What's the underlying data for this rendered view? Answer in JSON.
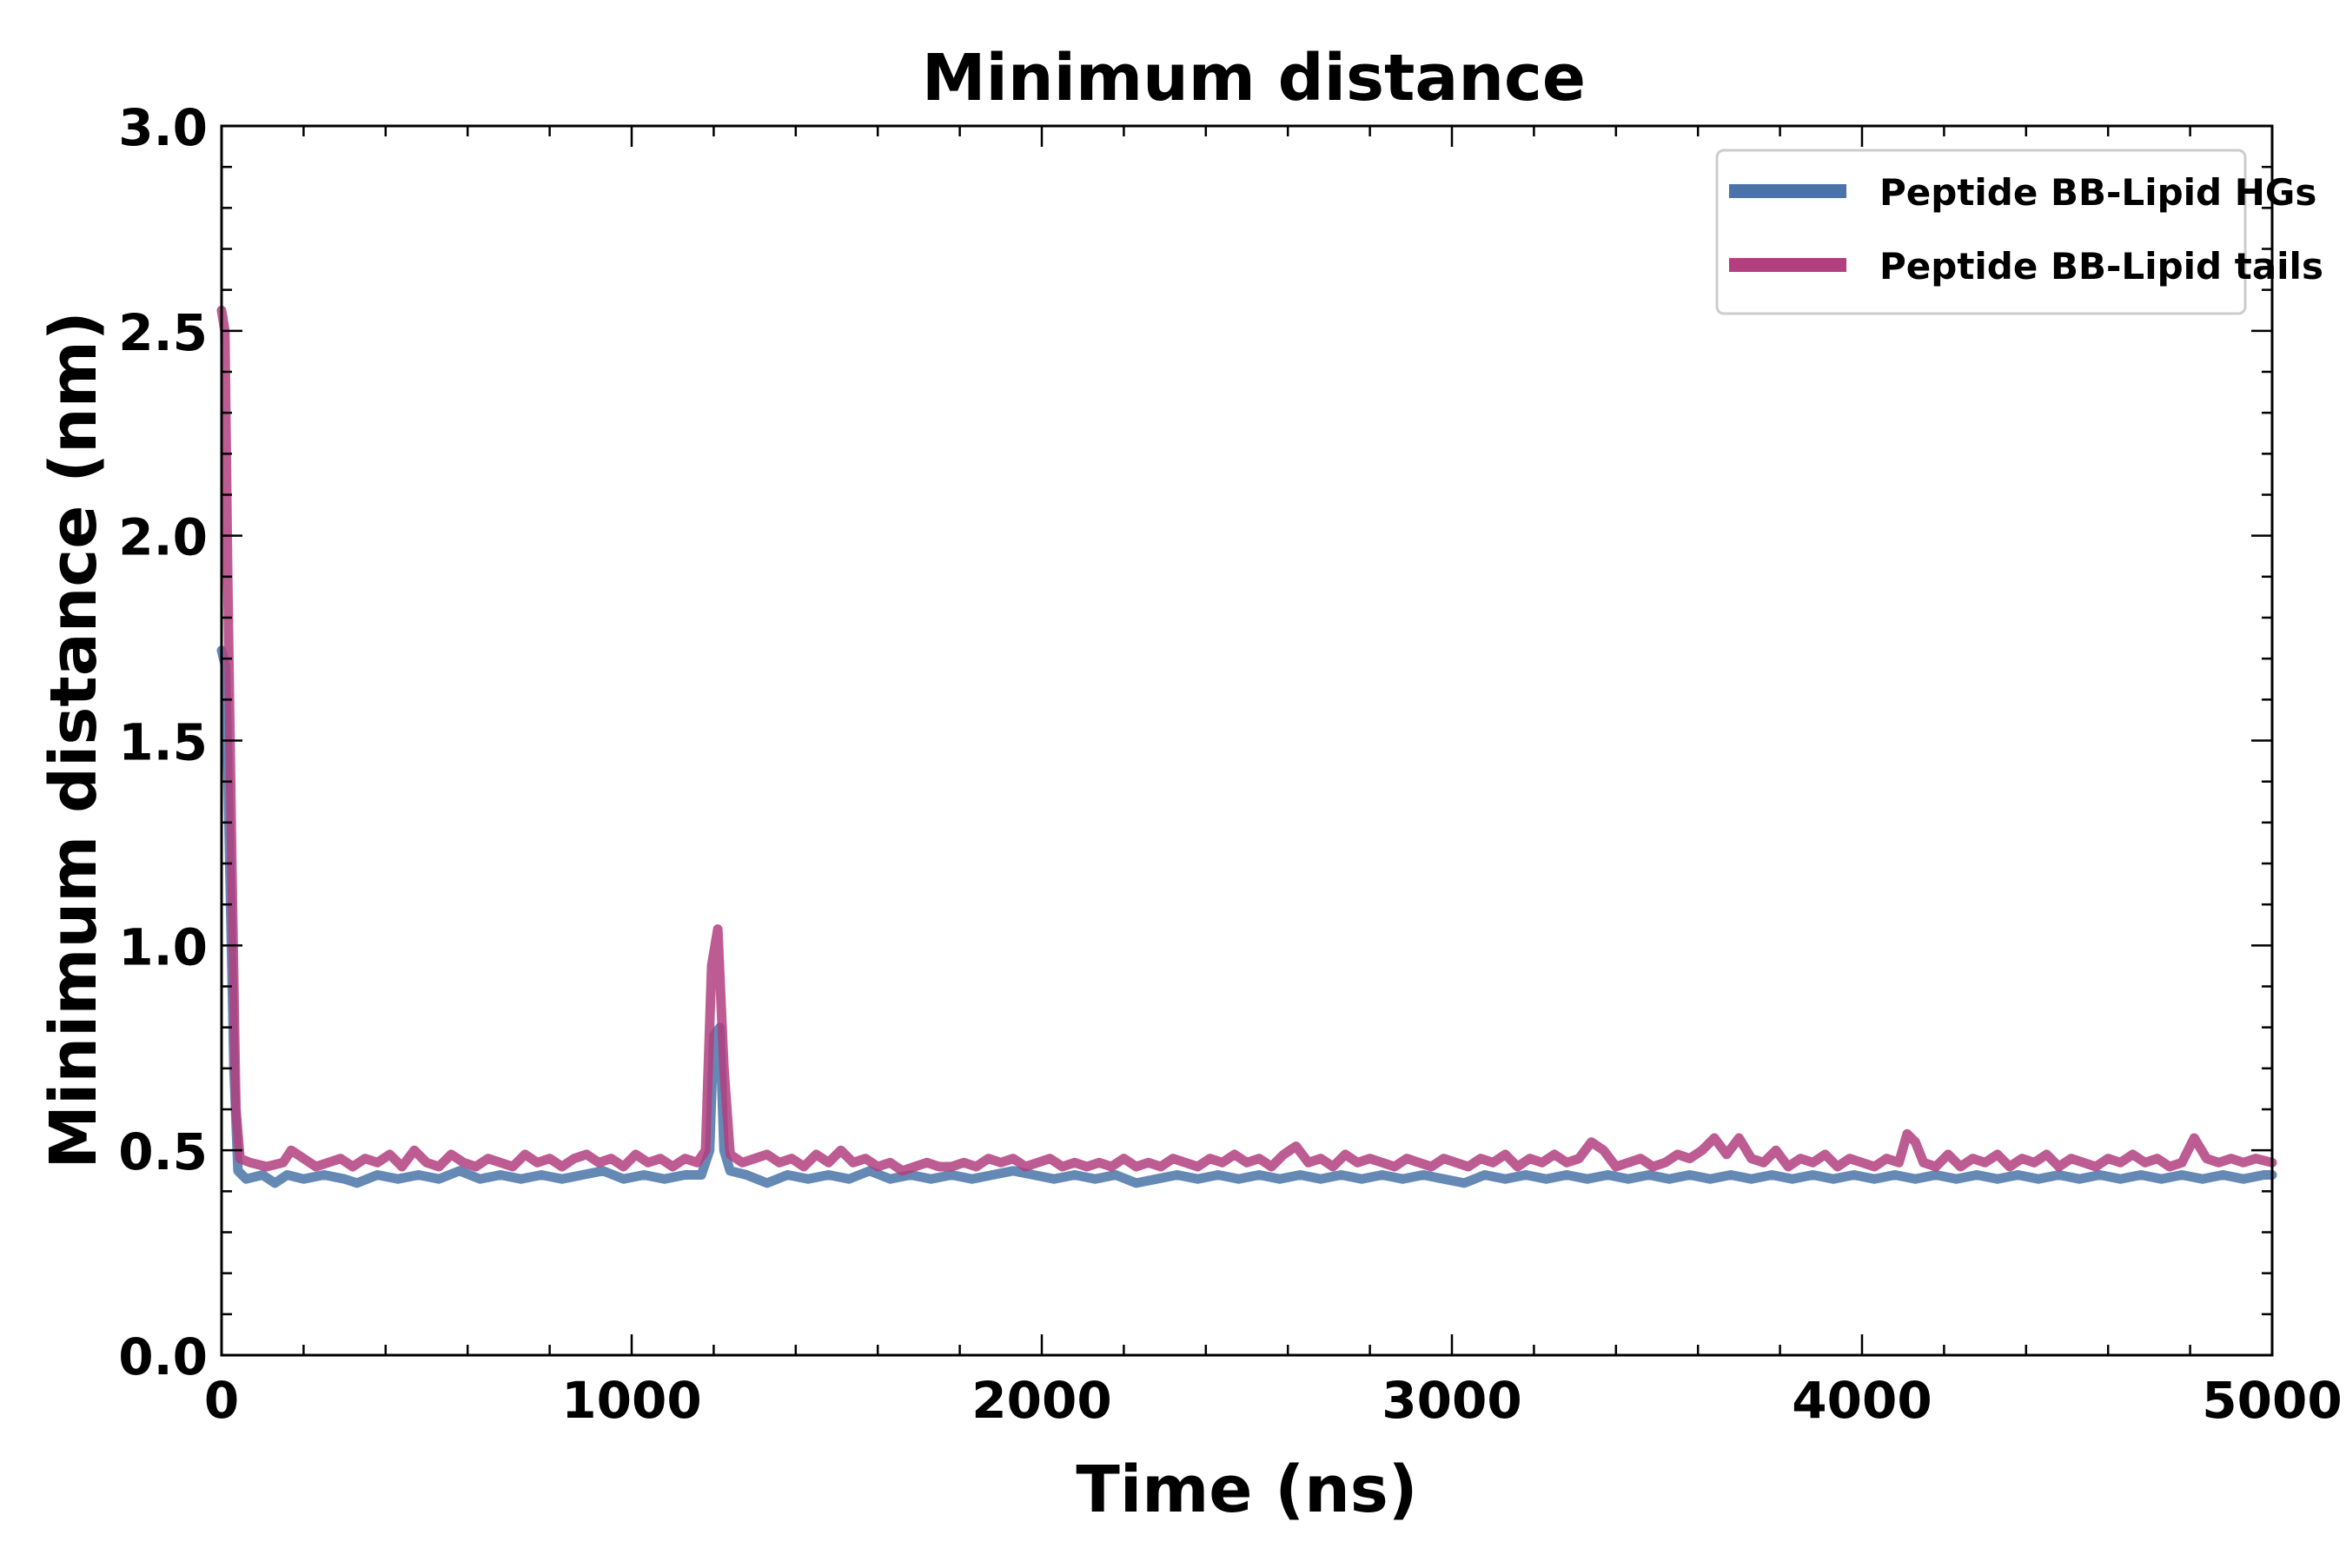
{
  "chart_data": {
    "type": "line",
    "title": "Minimum distance",
    "xlabel": "Time (ns)",
    "ylabel": "Minimum distance (nm)",
    "xlim": [
      0,
      5000
    ],
    "ylim": [
      0.0,
      3.0
    ],
    "xticks": [
      0,
      1000,
      2000,
      3000,
      4000,
      5000
    ],
    "xtick_labels": [
      "0",
      "1000",
      "2000",
      "3000",
      "4000",
      "5000"
    ],
    "yticks": [
      0.0,
      0.5,
      1.0,
      1.5,
      2.0,
      2.5,
      3.0
    ],
    "ytick_labels": [
      "0.0",
      "0.5",
      "1.0",
      "1.5",
      "2.0",
      "2.5",
      "3.0"
    ],
    "grid": false,
    "legend_position": "top-right",
    "series": [
      {
        "name": "Peptide BB-Lipid HGs",
        "color": "#4a74a8",
        "points": [
          [
            0,
            1.72
          ],
          [
            10,
            1.68
          ],
          [
            20,
            1.2
          ],
          [
            30,
            0.7
          ],
          [
            40,
            0.45
          ],
          [
            60,
            0.43
          ],
          [
            100,
            0.44
          ],
          [
            130,
            0.42
          ],
          [
            160,
            0.44
          ],
          [
            200,
            0.43
          ],
          [
            250,
            0.44
          ],
          [
            300,
            0.43
          ],
          [
            330,
            0.42
          ],
          [
            380,
            0.44
          ],
          [
            430,
            0.43
          ],
          [
            480,
            0.44
          ],
          [
            530,
            0.43
          ],
          [
            580,
            0.45
          ],
          [
            630,
            0.43
          ],
          [
            680,
            0.44
          ],
          [
            730,
            0.43
          ],
          [
            780,
            0.44
          ],
          [
            830,
            0.43
          ],
          [
            880,
            0.44
          ],
          [
            930,
            0.45
          ],
          [
            980,
            0.43
          ],
          [
            1030,
            0.44
          ],
          [
            1080,
            0.43
          ],
          [
            1130,
            0.44
          ],
          [
            1170,
            0.44
          ],
          [
            1190,
            0.5
          ],
          [
            1200,
            0.78
          ],
          [
            1215,
            0.8
          ],
          [
            1225,
            0.5
          ],
          [
            1240,
            0.45
          ],
          [
            1280,
            0.44
          ],
          [
            1330,
            0.42
          ],
          [
            1380,
            0.44
          ],
          [
            1430,
            0.43
          ],
          [
            1480,
            0.44
          ],
          [
            1530,
            0.43
          ],
          [
            1580,
            0.45
          ],
          [
            1630,
            0.43
          ],
          [
            1680,
            0.44
          ],
          [
            1730,
            0.43
          ],
          [
            1780,
            0.44
          ],
          [
            1830,
            0.43
          ],
          [
            1880,
            0.44
          ],
          [
            1930,
            0.45
          ],
          [
            1980,
            0.44
          ],
          [
            2030,
            0.43
          ],
          [
            2080,
            0.44
          ],
          [
            2130,
            0.43
          ],
          [
            2180,
            0.44
          ],
          [
            2230,
            0.42
          ],
          [
            2280,
            0.43
          ],
          [
            2330,
            0.44
          ],
          [
            2380,
            0.43
          ],
          [
            2430,
            0.44
          ],
          [
            2480,
            0.43
          ],
          [
            2530,
            0.44
          ],
          [
            2580,
            0.43
          ],
          [
            2630,
            0.44
          ],
          [
            2680,
            0.43
          ],
          [
            2730,
            0.44
          ],
          [
            2780,
            0.43
          ],
          [
            2830,
            0.44
          ],
          [
            2880,
            0.43
          ],
          [
            2930,
            0.44
          ],
          [
            2980,
            0.43
          ],
          [
            3030,
            0.42
          ],
          [
            3080,
            0.44
          ],
          [
            3130,
            0.43
          ],
          [
            3180,
            0.44
          ],
          [
            3230,
            0.43
          ],
          [
            3280,
            0.44
          ],
          [
            3330,
            0.43
          ],
          [
            3380,
            0.44
          ],
          [
            3430,
            0.43
          ],
          [
            3480,
            0.44
          ],
          [
            3530,
            0.43
          ],
          [
            3580,
            0.44
          ],
          [
            3630,
            0.43
          ],
          [
            3680,
            0.44
          ],
          [
            3730,
            0.43
          ],
          [
            3780,
            0.44
          ],
          [
            3830,
            0.43
          ],
          [
            3880,
            0.44
          ],
          [
            3930,
            0.43
          ],
          [
            3980,
            0.44
          ],
          [
            4030,
            0.43
          ],
          [
            4080,
            0.44
          ],
          [
            4130,
            0.43
          ],
          [
            4180,
            0.44
          ],
          [
            4230,
            0.43
          ],
          [
            4280,
            0.44
          ],
          [
            4330,
            0.43
          ],
          [
            4380,
            0.44
          ],
          [
            4430,
            0.43
          ],
          [
            4480,
            0.44
          ],
          [
            4530,
            0.43
          ],
          [
            4580,
            0.44
          ],
          [
            4630,
            0.43
          ],
          [
            4680,
            0.44
          ],
          [
            4730,
            0.43
          ],
          [
            4780,
            0.44
          ],
          [
            4830,
            0.43
          ],
          [
            4880,
            0.44
          ],
          [
            4930,
            0.43
          ],
          [
            4980,
            0.44
          ],
          [
            5000,
            0.44
          ]
        ]
      },
      {
        "name": "Peptide BB-Lipid tails",
        "color": "#b23f7f",
        "points": [
          [
            0,
            2.55
          ],
          [
            8,
            2.5
          ],
          [
            15,
            1.9
          ],
          [
            25,
            1.2
          ],
          [
            35,
            0.6
          ],
          [
            45,
            0.48
          ],
          [
            70,
            0.47
          ],
          [
            110,
            0.46
          ],
          [
            150,
            0.47
          ],
          [
            170,
            0.5
          ],
          [
            200,
            0.48
          ],
          [
            230,
            0.46
          ],
          [
            260,
            0.47
          ],
          [
            290,
            0.48
          ],
          [
            320,
            0.46
          ],
          [
            350,
            0.48
          ],
          [
            380,
            0.47
          ],
          [
            410,
            0.49
          ],
          [
            440,
            0.46
          ],
          [
            470,
            0.5
          ],
          [
            500,
            0.47
          ],
          [
            530,
            0.46
          ],
          [
            560,
            0.49
          ],
          [
            590,
            0.47
          ],
          [
            620,
            0.46
          ],
          [
            650,
            0.48
          ],
          [
            680,
            0.47
          ],
          [
            710,
            0.46
          ],
          [
            740,
            0.49
          ],
          [
            770,
            0.47
          ],
          [
            800,
            0.48
          ],
          [
            830,
            0.46
          ],
          [
            860,
            0.48
          ],
          [
            890,
            0.49
          ],
          [
            920,
            0.47
          ],
          [
            950,
            0.48
          ],
          [
            980,
            0.46
          ],
          [
            1010,
            0.49
          ],
          [
            1040,
            0.47
          ],
          [
            1070,
            0.48
          ],
          [
            1100,
            0.46
          ],
          [
            1130,
            0.48
          ],
          [
            1160,
            0.47
          ],
          [
            1180,
            0.5
          ],
          [
            1195,
            0.95
          ],
          [
            1210,
            1.04
          ],
          [
            1225,
            0.7
          ],
          [
            1240,
            0.49
          ],
          [
            1270,
            0.47
          ],
          [
            1300,
            0.48
          ],
          [
            1330,
            0.49
          ],
          [
            1360,
            0.47
          ],
          [
            1390,
            0.48
          ],
          [
            1420,
            0.46
          ],
          [
            1450,
            0.49
          ],
          [
            1480,
            0.47
          ],
          [
            1510,
            0.5
          ],
          [
            1540,
            0.47
          ],
          [
            1570,
            0.48
          ],
          [
            1600,
            0.46
          ],
          [
            1630,
            0.47
          ],
          [
            1660,
            0.45
          ],
          [
            1690,
            0.46
          ],
          [
            1720,
            0.47
          ],
          [
            1750,
            0.46
          ],
          [
            1780,
            0.46
          ],
          [
            1810,
            0.47
          ],
          [
            1840,
            0.46
          ],
          [
            1870,
            0.48
          ],
          [
            1900,
            0.47
          ],
          [
            1930,
            0.48
          ],
          [
            1960,
            0.46
          ],
          [
            1990,
            0.47
          ],
          [
            2020,
            0.48
          ],
          [
            2050,
            0.46
          ],
          [
            2080,
            0.47
          ],
          [
            2110,
            0.46
          ],
          [
            2140,
            0.47
          ],
          [
            2170,
            0.46
          ],
          [
            2200,
            0.48
          ],
          [
            2230,
            0.46
          ],
          [
            2260,
            0.47
          ],
          [
            2290,
            0.46
          ],
          [
            2320,
            0.48
          ],
          [
            2350,
            0.47
          ],
          [
            2380,
            0.46
          ],
          [
            2410,
            0.48
          ],
          [
            2440,
            0.47
          ],
          [
            2470,
            0.49
          ],
          [
            2500,
            0.47
          ],
          [
            2530,
            0.48
          ],
          [
            2560,
            0.46
          ],
          [
            2590,
            0.49
          ],
          [
            2620,
            0.51
          ],
          [
            2650,
            0.47
          ],
          [
            2680,
            0.48
          ],
          [
            2710,
            0.46
          ],
          [
            2740,
            0.49
          ],
          [
            2770,
            0.47
          ],
          [
            2800,
            0.48
          ],
          [
            2830,
            0.47
          ],
          [
            2860,
            0.46
          ],
          [
            2890,
            0.48
          ],
          [
            2920,
            0.47
          ],
          [
            2950,
            0.46
          ],
          [
            2980,
            0.48
          ],
          [
            3010,
            0.47
          ],
          [
            3040,
            0.46
          ],
          [
            3070,
            0.48
          ],
          [
            3100,
            0.47
          ],
          [
            3130,
            0.49
          ],
          [
            3160,
            0.46
          ],
          [
            3190,
            0.48
          ],
          [
            3220,
            0.47
          ],
          [
            3250,
            0.49
          ],
          [
            3280,
            0.47
          ],
          [
            3310,
            0.48
          ],
          [
            3340,
            0.52
          ],
          [
            3370,
            0.5
          ],
          [
            3400,
            0.46
          ],
          [
            3430,
            0.47
          ],
          [
            3460,
            0.48
          ],
          [
            3490,
            0.46
          ],
          [
            3520,
            0.47
          ],
          [
            3550,
            0.49
          ],
          [
            3580,
            0.48
          ],
          [
            3610,
            0.5
          ],
          [
            3640,
            0.53
          ],
          [
            3670,
            0.49
          ],
          [
            3700,
            0.53
          ],
          [
            3730,
            0.48
          ],
          [
            3760,
            0.47
          ],
          [
            3790,
            0.5
          ],
          [
            3820,
            0.46
          ],
          [
            3850,
            0.48
          ],
          [
            3880,
            0.47
          ],
          [
            3910,
            0.49
          ],
          [
            3940,
            0.46
          ],
          [
            3970,
            0.48
          ],
          [
            4000,
            0.47
          ],
          [
            4030,
            0.46
          ],
          [
            4060,
            0.48
          ],
          [
            4090,
            0.47
          ],
          [
            4110,
            0.54
          ],
          [
            4130,
            0.52
          ],
          [
            4150,
            0.47
          ],
          [
            4180,
            0.46
          ],
          [
            4210,
            0.49
          ],
          [
            4240,
            0.46
          ],
          [
            4270,
            0.48
          ],
          [
            4300,
            0.47
          ],
          [
            4330,
            0.49
          ],
          [
            4360,
            0.46
          ],
          [
            4390,
            0.48
          ],
          [
            4420,
            0.47
          ],
          [
            4450,
            0.49
          ],
          [
            4480,
            0.46
          ],
          [
            4510,
            0.48
          ],
          [
            4540,
            0.47
          ],
          [
            4570,
            0.46
          ],
          [
            4600,
            0.48
          ],
          [
            4630,
            0.47
          ],
          [
            4660,
            0.49
          ],
          [
            4690,
            0.47
          ],
          [
            4720,
            0.48
          ],
          [
            4750,
            0.46
          ],
          [
            4780,
            0.47
          ],
          [
            4810,
            0.53
          ],
          [
            4840,
            0.48
          ],
          [
            4870,
            0.47
          ],
          [
            4900,
            0.48
          ],
          [
            4930,
            0.47
          ],
          [
            4960,
            0.48
          ],
          [
            5000,
            0.47
          ]
        ]
      }
    ]
  }
}
